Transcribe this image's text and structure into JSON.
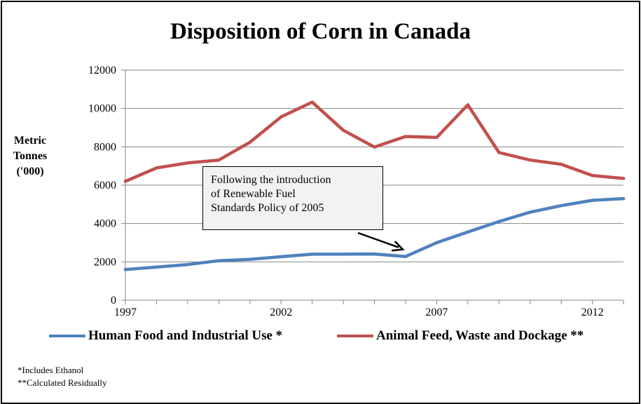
{
  "chart_data": {
    "type": "line",
    "title": "Disposition of Corn in Canada",
    "ylabel_lines": [
      "Metric",
      "Tonnes",
      "('000)"
    ],
    "xlabel": "",
    "x": [
      1997,
      1998,
      1999,
      2000,
      2001,
      2002,
      2003,
      2004,
      2005,
      2006,
      2007,
      2008,
      2009,
      2010,
      2011,
      2012,
      2013
    ],
    "xticks": [
      "1997",
      "2002",
      "2007",
      "2012"
    ],
    "yticks": [
      "0",
      "2000",
      "4000",
      "6000",
      "8000",
      "10000",
      "12000"
    ],
    "ylim": [
      0,
      12000
    ],
    "xlim": [
      1997,
      2013
    ],
    "grid": "horizontal",
    "series": [
      {
        "name": "Human Food and Industrial Use *",
        "color": "#4f81bd",
        "values": [
          1600,
          1730,
          1860,
          2060,
          2130,
          2270,
          2400,
          2400,
          2410,
          2280,
          3000,
          3560,
          4100,
          4590,
          4930,
          5210,
          5300
        ]
      },
      {
        "name": "Animal Feed, Waste and Dockage **",
        "color": "#c0504d",
        "values": [
          6200,
          6900,
          7160,
          7310,
          8240,
          9560,
          10330,
          8860,
          7990,
          8540,
          8490,
          10190,
          7700,
          7310,
          7090,
          6500,
          6350
        ]
      }
    ],
    "annotation": {
      "lines": [
        "Following the introduction",
        "of Renewable Fuel",
        "Standards Policy of 2005"
      ],
      "points_to_x": 2006
    },
    "footnotes": [
      "*Includes Ethanol",
      "**Calculated Residually"
    ]
  }
}
